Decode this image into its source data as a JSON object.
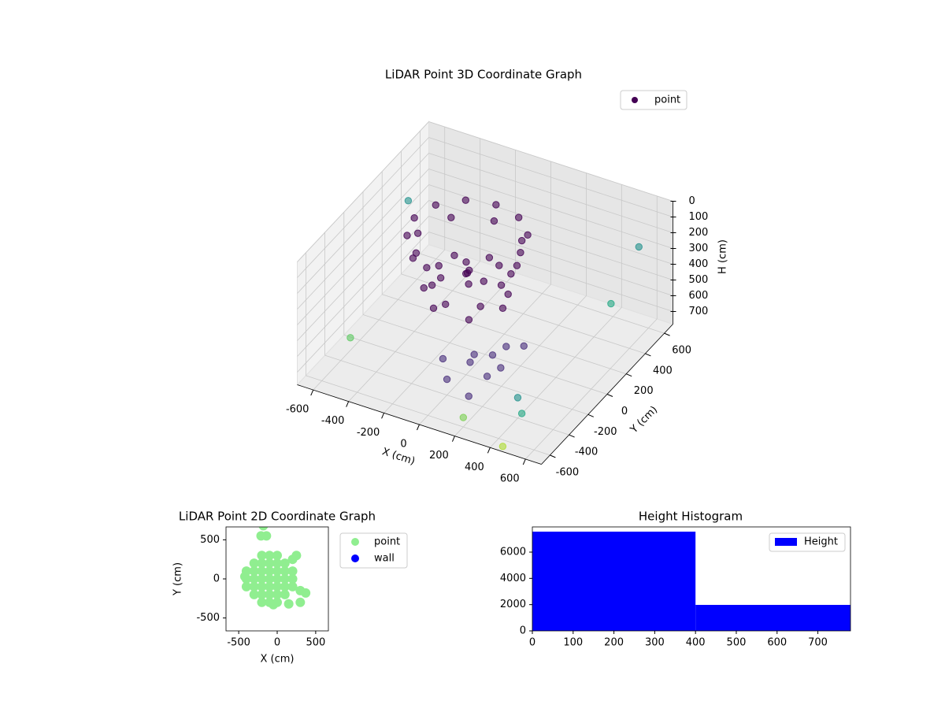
{
  "chart_data": [
    {
      "type": "scatter3d",
      "title": "LiDAR Point 3D Coordinate Graph",
      "xlabel": "X (cm)",
      "ylabel": "Y (cm)",
      "zlabel": "H (cm)",
      "xlim": [
        -690,
        690
      ],
      "ylim": [
        -690,
        690
      ],
      "zlim": [
        780,
        0
      ],
      "xticks": [
        -600,
        -400,
        -200,
        0,
        200,
        400,
        600
      ],
      "yticks": [
        -600,
        -400,
        -200,
        0,
        200,
        400,
        600
      ],
      "zticks": [
        0,
        100,
        200,
        300,
        400,
        500,
        600,
        700
      ],
      "grid": true,
      "legend": "upper right",
      "series": [
        {
          "name": "point",
          "color": "#440154",
          "x": [
            200,
            160,
            50,
            -100,
            -250,
            -360,
            -400,
            -360,
            -250,
            -100,
            50,
            160,
            180,
            100,
            -100,
            -300,
            -380,
            -300,
            -100,
            100,
            130,
            60,
            -100,
            -260,
            -330,
            -260,
            -100,
            60,
            100,
            0,
            -200,
            -300,
            -200,
            0,
            -100,
            -150,
            -50,
            100,
            150,
            200,
            50,
            250,
            0,
            300,
            150,
            200,
            -50,
            -650,
            -600,
            600,
            550,
            400,
            450,
            200,
            450
          ],
          "y": [
            0,
            150,
            260,
            300,
            260,
            150,
            0,
            -150,
            -260,
            -300,
            -260,
            -150,
            0,
            200,
            280,
            200,
            0,
            -200,
            -280,
            -200,
            0,
            160,
            230,
            160,
            0,
            -160,
            -230,
            -160,
            0,
            170,
            170,
            0,
            -170,
            -170,
            0,
            80,
            -80,
            -300,
            -200,
            -350,
            -250,
            -300,
            -400,
            -150,
            -450,
            -150,
            -350,
            400,
            -300,
            500,
            300,
            -400,
            -450,
            -600,
            -650
          ],
          "values": [
            60,
            60,
            60,
            60,
            60,
            60,
            60,
            60,
            60,
            60,
            60,
            60,
            150,
            150,
            150,
            150,
            150,
            150,
            150,
            150,
            350,
            350,
            350,
            350,
            350,
            350,
            350,
            350,
            450,
            450,
            450,
            450,
            450,
            450,
            300,
            300,
            300,
            550,
            600,
            620,
            650,
            580,
            680,
            520,
            700,
            560,
            600,
            300,
            700,
            200,
            450,
            650,
            700,
            720,
            780
          ],
          "colors": [
            "#440154",
            "#440154",
            "#440154",
            "#440154",
            "#440154",
            "#440154",
            "#440154",
            "#440154",
            "#440154",
            "#440154",
            "#440154",
            "#440154",
            "#440154",
            "#440154",
            "#440154",
            "#440154",
            "#440154",
            "#440154",
            "#440154",
            "#440154",
            "#440154",
            "#440154",
            "#440154",
            "#440154",
            "#440154",
            "#440154",
            "#440154",
            "#440154",
            "#440154",
            "#440154",
            "#440154",
            "#440154",
            "#440154",
            "#440154",
            "#440154",
            "#440154",
            "#440154",
            "#472d7b",
            "#472d7b",
            "#472d7b",
            "#472d7b",
            "#472d7b",
            "#472d7b",
            "#472d7b",
            "#472d7b",
            "#472d7b",
            "#472d7b",
            "#21918c",
            "#5ec962",
            "#21918c",
            "#22a884",
            "#21918c",
            "#22a884",
            "#7ad151",
            "#addc30"
          ]
        }
      ]
    },
    {
      "type": "scatter",
      "title": "LiDAR Point 2D Coordinate Graph",
      "xlabel": "X (cm)",
      "ylabel": "Y (cm)",
      "xlim": [
        -665,
        665
      ],
      "ylim": [
        -665,
        665
      ],
      "xticks": [
        -500,
        0,
        500
      ],
      "yticks": [
        -500,
        0,
        500
      ],
      "legend": "outside right",
      "series": [
        {
          "name": "point",
          "color": "#90ee90",
          "x": [
            -200,
            -100,
            0,
            -300,
            -200,
            -100,
            0,
            100,
            -400,
            -300,
            -200,
            -100,
            0,
            100,
            200,
            -400,
            -300,
            -200,
            -100,
            0,
            100,
            200,
            -400,
            -300,
            -200,
            -100,
            0,
            100,
            200,
            -300,
            -200,
            -100,
            0,
            100,
            -200,
            -100,
            0,
            300,
            370,
            300,
            200,
            250,
            -420,
            -210,
            -140,
            -180,
            -50,
            150
          ],
          "values": [
            300,
            300,
            300,
            200,
            200,
            200,
            200,
            200,
            100,
            100,
            100,
            100,
            100,
            100,
            100,
            0,
            0,
            0,
            0,
            0,
            0,
            0,
            -100,
            -100,
            -100,
            -100,
            -100,
            -100,
            -100,
            -200,
            -200,
            -200,
            -200,
            -200,
            -300,
            -300,
            -300,
            -150,
            -180,
            -300,
            250,
            300,
            30,
            550,
            550,
            680,
            -330,
            -320
          ]
        },
        {
          "name": "wall",
          "color": "#0000ff",
          "x": [],
          "values": []
        }
      ]
    },
    {
      "type": "histogram",
      "title": "Height Histogram",
      "bins": [
        0,
        400,
        780
      ],
      "xlim": [
        0,
        780
      ],
      "ylim": [
        0,
        7920
      ],
      "xticks": [
        0,
        100,
        200,
        300,
        400,
        500,
        600,
        700
      ],
      "yticks": [
        0,
        2000,
        4000,
        6000
      ],
      "legend": "upper right",
      "series": [
        {
          "name": "Height",
          "color": "#0000ff",
          "values": [
            7560,
            1980
          ]
        }
      ]
    }
  ]
}
